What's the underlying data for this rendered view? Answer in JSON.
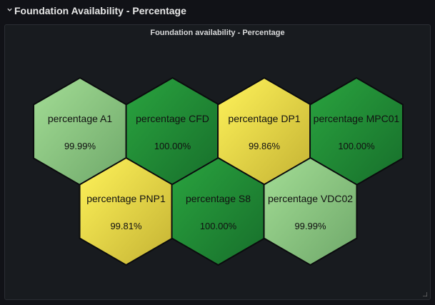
{
  "row": {
    "title": "Foundation Availability - Percentage",
    "collapse_icon": "chevron-down-icon"
  },
  "panel": {
    "title": "Foundation availability - Percentage",
    "resize_icon": "resize-corner-icon"
  },
  "colors": {
    "green_light": "#8fcf80",
    "green_dark": "#229738",
    "yellow": "#f2e84a"
  },
  "hexes": [
    {
      "label": "percentage A1",
      "value": "99.99%",
      "color": "green_light"
    },
    {
      "label": "percentage CFD",
      "value": "100.00%",
      "color": "green_dark"
    },
    {
      "label": "percentage DP1",
      "value": "99.86%",
      "color": "yellow"
    },
    {
      "label": "percentage MPC01",
      "value": "100.00%",
      "color": "green_dark"
    },
    {
      "label": "percentage PNP1",
      "value": "99.81%",
      "color": "yellow"
    },
    {
      "label": "percentage S8",
      "value": "100.00%",
      "color": "green_dark"
    },
    {
      "label": "percentage VDC02",
      "value": "99.99%",
      "color": "green_light"
    }
  ]
}
